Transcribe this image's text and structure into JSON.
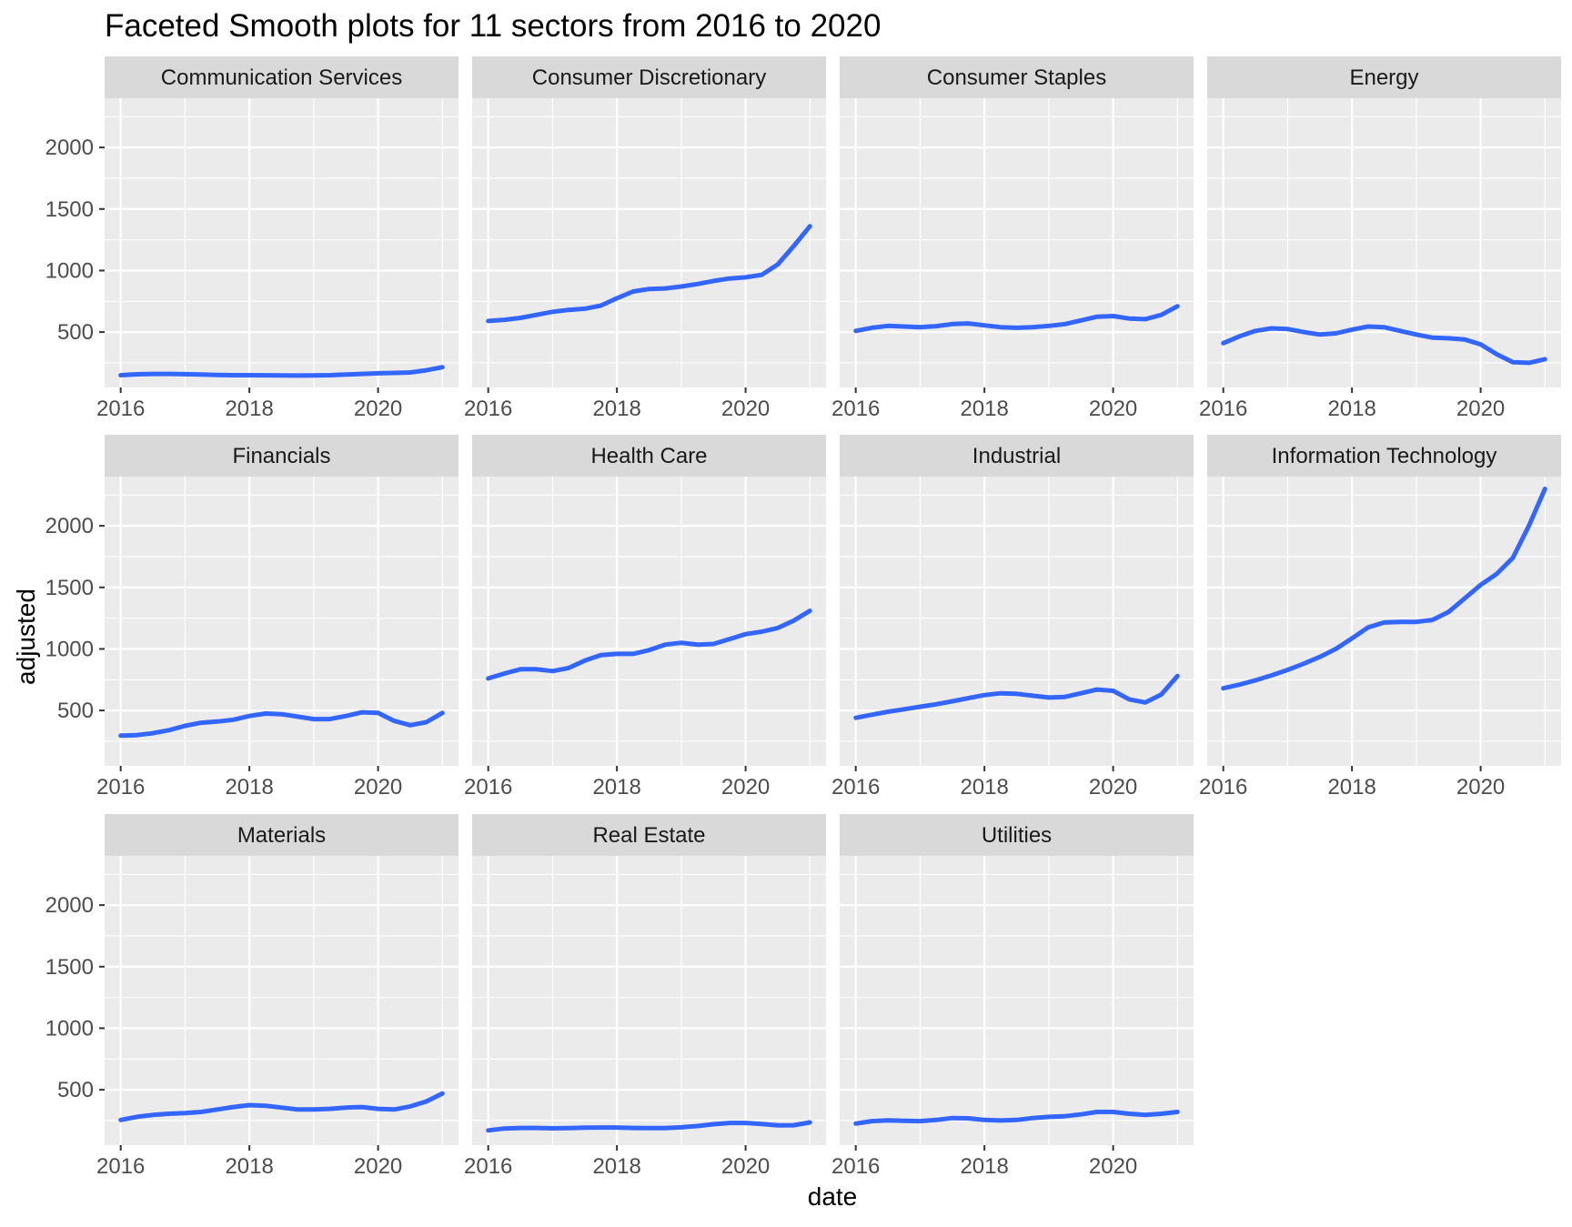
{
  "chart_data": {
    "type": "line",
    "title": "Faceted Smooth plots for 11 sectors from 2016 to 2020",
    "xlabel": "date",
    "ylabel": "adjusted",
    "xlim": [
      2015.75,
      2021.25
    ],
    "ylim": [
      50,
      2400
    ],
    "x_ticks": [
      2016,
      2018,
      2020
    ],
    "y_ticks": [
      500,
      1000,
      1500,
      2000
    ],
    "grid": true,
    "line_color": "#3366ff",
    "panel_color": "#ebebeb",
    "strip_color": "#d9d9d9",
    "x": [
      2016.0,
      2016.25,
      2016.5,
      2016.75,
      2017.0,
      2017.25,
      2017.5,
      2017.75,
      2018.0,
      2018.25,
      2018.5,
      2018.75,
      2019.0,
      2019.25,
      2019.5,
      2019.75,
      2020.0,
      2020.25,
      2020.5,
      2020.75,
      2021.0
    ],
    "series": [
      {
        "name": "Communication Services",
        "values": [
          150,
          157,
          160,
          160,
          158,
          155,
          152,
          150,
          150,
          149,
          148,
          147,
          148,
          150,
          155,
          160,
          165,
          168,
          172,
          190,
          215
        ]
      },
      {
        "name": "Consumer Discretionary",
        "values": [
          590,
          600,
          615,
          640,
          665,
          680,
          690,
          715,
          775,
          830,
          850,
          855,
          870,
          890,
          915,
          935,
          945,
          965,
          1050,
          1200,
          1360
        ]
      },
      {
        "name": "Consumer Staples",
        "values": [
          510,
          535,
          550,
          545,
          540,
          548,
          565,
          570,
          555,
          540,
          535,
          540,
          550,
          565,
          595,
          625,
          630,
          610,
          605,
          640,
          710
        ]
      },
      {
        "name": "Energy",
        "values": [
          410,
          465,
          510,
          530,
          525,
          500,
          480,
          490,
          520,
          545,
          540,
          510,
          480,
          455,
          450,
          440,
          400,
          320,
          255,
          250,
          280
        ]
      },
      {
        "name": "Financials",
        "values": [
          295,
          300,
          315,
          340,
          375,
          400,
          410,
          425,
          455,
          475,
          470,
          450,
          430,
          430,
          455,
          485,
          480,
          415,
          380,
          405,
          480
        ]
      },
      {
        "name": "Health Care",
        "values": [
          760,
          800,
          835,
          835,
          820,
          845,
          905,
          950,
          960,
          960,
          990,
          1035,
          1050,
          1035,
          1040,
          1080,
          1120,
          1140,
          1170,
          1230,
          1310
        ]
      },
      {
        "name": "Industrial",
        "values": [
          440,
          465,
          490,
          510,
          530,
          550,
          575,
          600,
          625,
          640,
          635,
          620,
          605,
          610,
          640,
          670,
          660,
          590,
          565,
          630,
          780
        ]
      },
      {
        "name": "Information Technology",
        "values": [
          680,
          710,
          745,
          785,
          830,
          880,
          935,
          1000,
          1085,
          1175,
          1215,
          1220,
          1220,
          1235,
          1300,
          1410,
          1520,
          1610,
          1740,
          2000,
          2300
        ]
      },
      {
        "name": "Materials",
        "values": [
          255,
          280,
          295,
          305,
          310,
          320,
          340,
          360,
          375,
          370,
          355,
          340,
          340,
          345,
          355,
          360,
          345,
          340,
          365,
          405,
          470
        ]
      },
      {
        "name": "Real Estate",
        "values": [
          170,
          185,
          190,
          190,
          187,
          188,
          192,
          193,
          193,
          190,
          188,
          188,
          195,
          205,
          220,
          230,
          230,
          222,
          210,
          212,
          235
        ]
      },
      {
        "name": "Utilities",
        "values": [
          225,
          245,
          252,
          248,
          245,
          255,
          270,
          268,
          255,
          250,
          255,
          270,
          280,
          285,
          300,
          320,
          320,
          305,
          295,
          305,
          320
        ]
      }
    ]
  }
}
